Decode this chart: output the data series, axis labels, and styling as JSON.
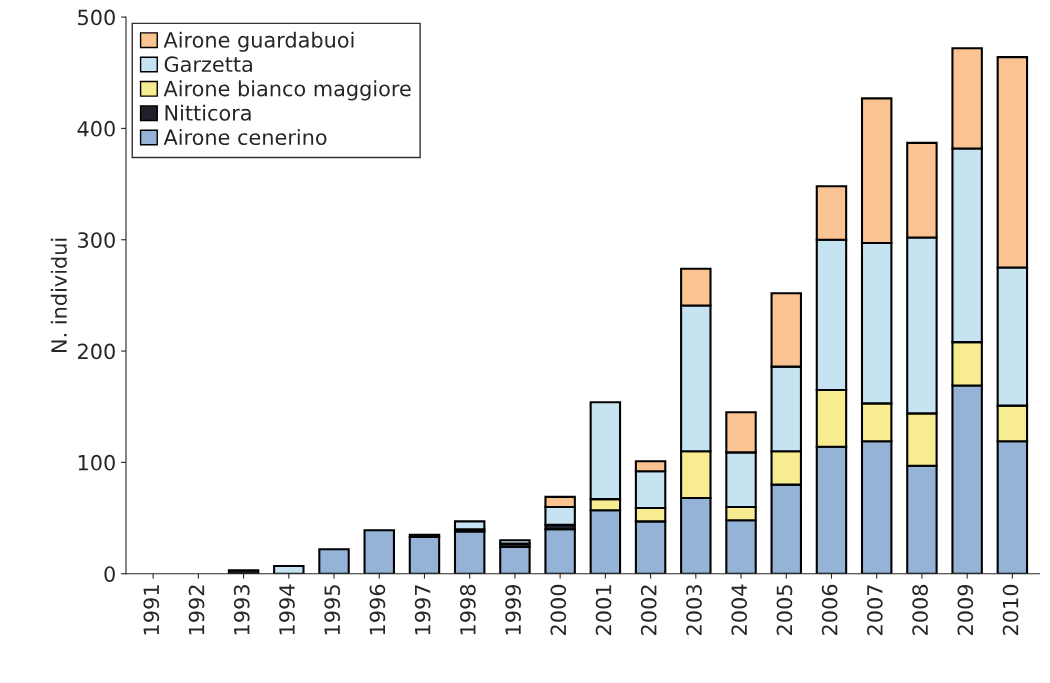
{
  "chart_data": {
    "type": "bar",
    "stacked": true,
    "ylabel": "N. individui",
    "categories": [
      "1991",
      "1992",
      "1993",
      "1994",
      "1995",
      "1996",
      "1997",
      "1998",
      "1999",
      "2000",
      "2001",
      "2002",
      "2003",
      "2004",
      "2005",
      "2006",
      "2007",
      "2008",
      "2009",
      "2010"
    ],
    "series": [
      {
        "name": "Airone cenerino",
        "color": "#95b3d7",
        "values": [
          null,
          null,
          null,
          null,
          22,
          39,
          33,
          38,
          24,
          40,
          57,
          47,
          68,
          48,
          80,
          114,
          119,
          97,
          169,
          119
        ]
      },
      {
        "name": "Nitticora",
        "color": "#20202a",
        "values": [
          null,
          null,
          3,
          null,
          null,
          null,
          2,
          2,
          3,
          4,
          null,
          null,
          null,
          null,
          null,
          null,
          null,
          null,
          null,
          null
        ]
      },
      {
        "name": "Airone bianco maggiore",
        "color": "#f7ec8f",
        "values": [
          null,
          null,
          null,
          null,
          null,
          null,
          null,
          null,
          null,
          null,
          10,
          12,
          42,
          12,
          30,
          51,
          34,
          47,
          39,
          32
        ]
      },
      {
        "name": "Garzetta",
        "color": "#c6e3f2",
        "values": [
          null,
          null,
          null,
          7,
          null,
          null,
          null,
          7,
          3,
          16,
          87,
          33,
          131,
          49,
          76,
          135,
          144,
          158,
          174,
          124
        ]
      },
      {
        "name": "Airone guardabuoi",
        "color": "#f9c392",
        "values": [
          null,
          null,
          null,
          null,
          null,
          null,
          null,
          null,
          null,
          9,
          null,
          9,
          33,
          36,
          66,
          48,
          130,
          85,
          90,
          189
        ]
      }
    ],
    "ylim": [
      0,
      500
    ],
    "yticks": [
      0,
      100,
      200,
      300,
      400,
      500
    ],
    "grid": false,
    "legend": "top left"
  }
}
